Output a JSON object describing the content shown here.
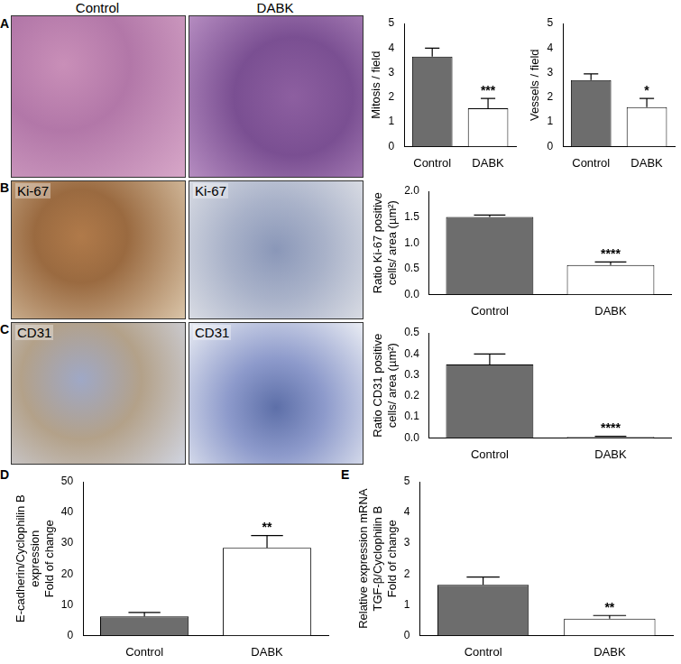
{
  "panel_labels": [
    "A",
    "B",
    "C",
    "D",
    "E"
  ],
  "image_column_titles": [
    "Control",
    "DABK"
  ],
  "image_labels": {
    "B": "Ki-67",
    "C": "CD31"
  },
  "chart_data": [
    {
      "type": "bar",
      "y_label": [
        "Mitosis / field"
      ],
      "categories": [
        "Control",
        "DABK"
      ],
      "values": [
        3.65,
        1.55
      ],
      "errors": [
        0.35,
        0.4
      ],
      "colors": [
        "#6d6d6d",
        "#ffffff"
      ],
      "ylim": [
        0,
        5
      ],
      "yticks": [
        0,
        1,
        2,
        3,
        4,
        5
      ],
      "grid": false,
      "annotations": [
        {
          "category": "DABK",
          "text": "***"
        }
      ]
    },
    {
      "type": "bar",
      "y_label": [
        "Vessels / field"
      ],
      "categories": [
        "Control",
        "DABK"
      ],
      "values": [
        2.7,
        1.6
      ],
      "errors": [
        0.25,
        0.35
      ],
      "colors": [
        "#6d6d6d",
        "#ffffff"
      ],
      "ylim": [
        0,
        5
      ],
      "yticks": [
        0,
        1,
        2,
        3,
        4,
        5
      ],
      "grid": false,
      "annotations": [
        {
          "category": "DABK",
          "text": "*"
        }
      ]
    },
    {
      "type": "bar",
      "y_label": [
        "Ratio Ki-67 positive",
        "cells/ area (µm²)"
      ],
      "categories": [
        "Control",
        "DABK"
      ],
      "values": [
        1.5,
        0.57
      ],
      "errors": [
        0.04,
        0.06
      ],
      "colors": [
        "#6d6d6d",
        "#ffffff"
      ],
      "ylim": [
        0,
        2
      ],
      "yticks": [
        {
          "value": 0,
          "label": "0.0"
        },
        0.5,
        {
          "value": 1,
          "label": "1.0"
        },
        1.5,
        {
          "value": 2,
          "label": "2.0"
        }
      ],
      "grid": false,
      "annotations": [
        {
          "category": "DABK",
          "text": "****"
        }
      ]
    },
    {
      "type": "bar",
      "y_label": [
        "Ratio CD31 positive",
        "cells/ area (µm²)"
      ],
      "categories": [
        "Control",
        "DABK"
      ],
      "values": [
        0.35,
        0.005
      ],
      "errors": [
        0.05,
        0.003
      ],
      "colors": [
        "#6d6d6d",
        "#ffffff"
      ],
      "ylim": [
        0,
        0.5
      ],
      "yticks": [
        {
          "value": 0,
          "label": "0.0"
        },
        0.1,
        0.2,
        0.3,
        0.4,
        0.5
      ],
      "grid": false,
      "annotations": [
        {
          "category": "DABK",
          "text": "****"
        }
      ]
    },
    {
      "type": "bar",
      "y_label": [
        "E-cadherin/Cyclophilin B",
        "expression",
        "Fold of change"
      ],
      "categories": [
        "Control",
        "DABK"
      ],
      "values": [
        6.2,
        28.5
      ],
      "errors": [
        1.3,
        4
      ],
      "colors": [
        "#6d6d6d",
        "#ffffff"
      ],
      "ylim": [
        0,
        50
      ],
      "yticks": [
        0,
        10,
        20,
        30,
        40,
        50
      ],
      "grid": false,
      "annotations": [
        {
          "category": "DABK",
          "text": "**"
        }
      ]
    },
    {
      "type": "bar",
      "y_label": [
        "Relative expression mRNA",
        "TGF-β/Cyclophilin B",
        "Fold of change"
      ],
      "categories": [
        "Control",
        "DABK"
      ],
      "values": [
        1.65,
        0.55
      ],
      "errors": [
        0.25,
        0.1
      ],
      "colors": [
        "#6d6d6d",
        "#ffffff"
      ],
      "ylim": [
        0,
        5
      ],
      "yticks": [
        0,
        1,
        2,
        3,
        4,
        5
      ],
      "grid": false,
      "annotations": [
        {
          "category": "DABK",
          "text": "**"
        }
      ]
    }
  ]
}
